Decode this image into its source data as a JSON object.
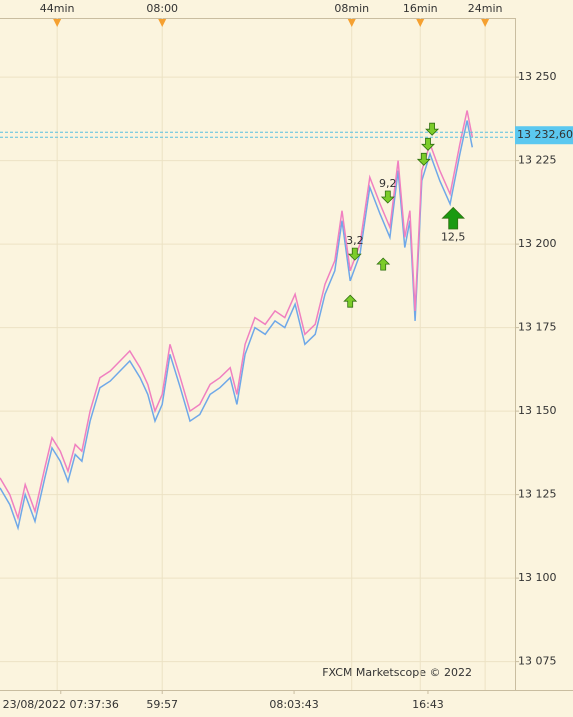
{
  "chart_data": {
    "type": "line",
    "xlim": [
      0,
      100
    ],
    "ylim": [
      13066.5,
      13267.7
    ],
    "yticks": [
      {
        "value": 13250,
        "label": "13 250"
      },
      {
        "value": 13225,
        "label": "13 225"
      },
      {
        "value": 13200,
        "label": "13 200"
      },
      {
        "value": 13175,
        "label": "13 175"
      },
      {
        "value": 13150,
        "label": "13 150"
      },
      {
        "value": 13125,
        "label": "13 125"
      },
      {
        "value": 13100,
        "label": "13 100"
      },
      {
        "value": 13075,
        "label": "13 075"
      }
    ],
    "xticks": [
      {
        "value": 11.1,
        "label": "44min"
      },
      {
        "value": 31.5,
        "label": "08:00"
      },
      {
        "value": 68.3,
        "label": "08min"
      },
      {
        "value": 81.6,
        "label": "16min"
      },
      {
        "value": 94.2,
        "label": "24min"
      }
    ],
    "bottom_xticks": [
      {
        "value": 11.8,
        "label": "23/08/2022 07:37:36"
      },
      {
        "value": 31.5,
        "label": "59:57"
      },
      {
        "value": 57.1,
        "label": "08:03:43"
      },
      {
        "value": 83.1,
        "label": "16:43"
      }
    ],
    "grid": true,
    "x": [
      0,
      1.9,
      3.5,
      4.9,
      6.8,
      8.7,
      10.1,
      11.7,
      13.2,
      14.6,
      15.9,
      17.5,
      19.4,
      21.4,
      23.3,
      25.2,
      27.2,
      28.7,
      30.1,
      31.5,
      33.0,
      35.0,
      36.9,
      38.8,
      40.8,
      42.7,
      44.7,
      46.0,
      47.6,
      49.5,
      51.5,
      53.4,
      55.3,
      57.3,
      59.2,
      61.2,
      63.1,
      65.0,
      66.4,
      68.0,
      69.9,
      71.8,
      73.8,
      75.7,
      77.3,
      78.6,
      79.6,
      80.6,
      81.9,
      83.5,
      85.4,
      87.4,
      89.3,
      90.7,
      91.7
    ],
    "series": [
      {
        "color": "#f080c0",
        "values": [
          13130,
          13125,
          13118,
          13128,
          13120,
          13133,
          13142,
          13138,
          13132,
          13140,
          13138,
          13150,
          13160,
          13162,
          13165,
          13168,
          13163,
          13158,
          13150,
          13155,
          13170,
          13160,
          13150,
          13152,
          13158,
          13160,
          13163,
          13155,
          13170,
          13178,
          13176,
          13180,
          13178,
          13185,
          13173,
          13176,
          13188,
          13195,
          13210,
          13192,
          13200,
          13220,
          13212,
          13205,
          13225,
          13202,
          13210,
          13180,
          13222,
          13230,
          13222,
          13215,
          13230,
          13240,
          13232
        ]
      },
      {
        "color": "#6fa8e8",
        "values": [
          13127,
          13122,
          13115,
          13125,
          13117,
          13130,
          13139,
          13135,
          13129,
          13137,
          13135,
          13147,
          13157,
          13159,
          13162,
          13165,
          13160,
          13155,
          13147,
          13152,
          13167,
          13157,
          13147,
          13149,
          13155,
          13157,
          13160,
          13152,
          13167,
          13175,
          13173,
          13177,
          13175,
          13182,
          13170,
          13173,
          13185,
          13192,
          13207,
          13189,
          13197,
          13217,
          13209,
          13202,
          13222,
          13199,
          13207,
          13177,
          13219,
          13227,
          13219,
          13212,
          13227,
          13237,
          13229
        ]
      }
    ],
    "price_lines": [
      13233.5,
      13232.0
    ],
    "current_price": {
      "value": 13232.6,
      "label": "13 232,60"
    },
    "arrows": [
      {
        "x": 68.0,
        "y": 13184.7,
        "dir": "up"
      },
      {
        "x": 74.4,
        "y": 13195.8,
        "dir": "up"
      },
      {
        "x": 88.0,
        "y": 13211,
        "dir": "up",
        "big": true,
        "label": "12,5"
      },
      {
        "x": 68.9,
        "y": 13195.2,
        "dir": "down",
        "label": "3,2"
      },
      {
        "x": 75.3,
        "y": 13212.3,
        "dir": "down",
        "label": "9,2"
      },
      {
        "x": 83.9,
        "y": 13232.6,
        "dir": "down"
      },
      {
        "x": 83.1,
        "y": 13228.1,
        "dir": "down"
      },
      {
        "x": 82.3,
        "y": 13223.6,
        "dir": "down"
      }
    ],
    "footer": "FXCM Marketscope © 2022"
  }
}
